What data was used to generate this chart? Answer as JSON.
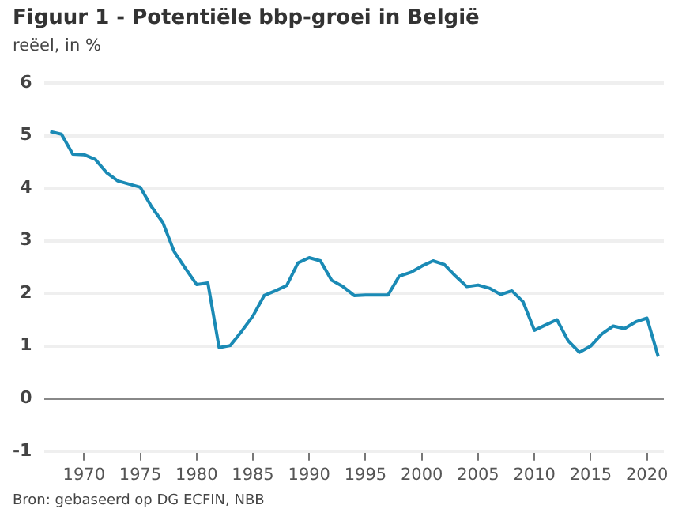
{
  "chart_data": {
    "type": "line",
    "title": "Figuur 1 - Potentiële bbp-groei in België",
    "subtitle": "reëel, in %",
    "x": [
      1967,
      1968,
      1969,
      1970,
      1971,
      1972,
      1973,
      1974,
      1975,
      1976,
      1977,
      1978,
      1979,
      1980,
      1981,
      1982,
      1983,
      1984,
      1985,
      1986,
      1987,
      1988,
      1989,
      1990,
      1991,
      1992,
      1993,
      1994,
      1995,
      1996,
      1997,
      1998,
      1999,
      2000,
      2001,
      2002,
      2003,
      2004,
      2005,
      2006,
      2007,
      2008,
      2009,
      2010,
      2011,
      2012,
      2013,
      2014,
      2015,
      2016,
      2017,
      2018,
      2019,
      2020,
      2021
    ],
    "series": [
      {
        "color": "#1a8ab5",
        "values": [
          5.08,
          5.03,
          4.65,
          4.64,
          4.55,
          4.3,
          4.14,
          4.08,
          4.02,
          3.65,
          3.35,
          2.8,
          2.48,
          2.17,
          2.2,
          0.97,
          1.01,
          1.28,
          1.57,
          1.96,
          2.05,
          2.15,
          2.58,
          2.68,
          2.62,
          2.25,
          2.13,
          1.96,
          1.97,
          1.97,
          1.97,
          2.33,
          2.4,
          2.52,
          2.62,
          2.55,
          2.33,
          2.13,
          2.16,
          2.1,
          1.98,
          2.05,
          1.84,
          1.3,
          1.4,
          1.5,
          1.1,
          0.88,
          1.0,
          1.23,
          1.38,
          1.33,
          1.46,
          1.53,
          0.8
        ]
      }
    ],
    "xlim": [
      1966.5,
      2021.5
    ],
    "xticks": [
      1970,
      1975,
      1980,
      1985,
      1990,
      1995,
      2000,
      2005,
      2010,
      2015,
      2020
    ],
    "ylim": [
      -1,
      6
    ],
    "yticks": [
      -1,
      0,
      1,
      2,
      3,
      4,
      5,
      6
    ],
    "grid": "y",
    "legend": false,
    "marker": "none",
    "line_style": "solid",
    "annotations": [
      "Bron: gebaseerd op DG ECFIN, NBB"
    ]
  }
}
